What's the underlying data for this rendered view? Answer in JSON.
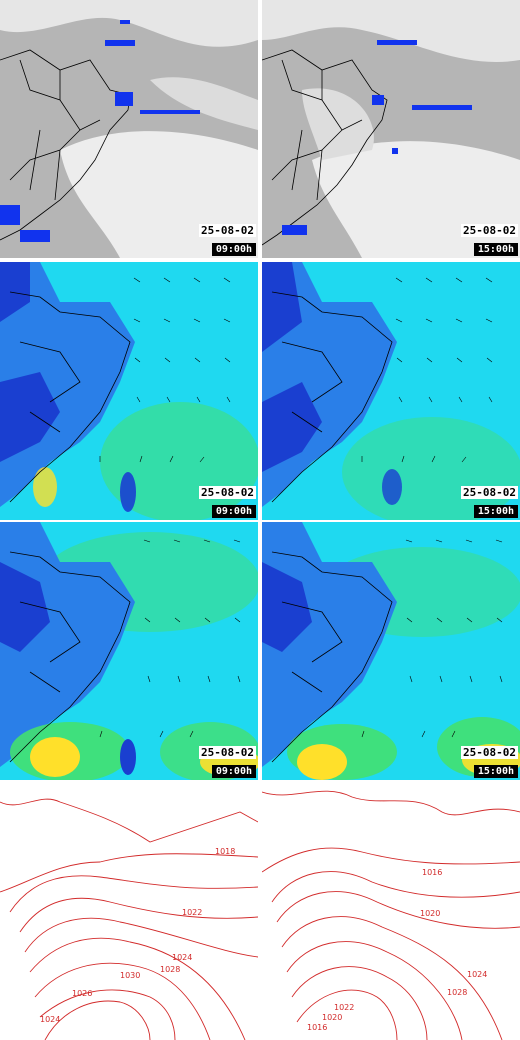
{
  "colors": {
    "satellite_bg": "#b9b9b9",
    "cloud": "#efefef",
    "cold_top": "#1133ee",
    "land_dark": "#1a3fd0",
    "ocean_cyan": "#1fd9f0",
    "mid_blue": "#2a7fe8",
    "green": "#43e070",
    "yellow": "#ffe02a",
    "isobar": "#d22a2a",
    "border": "#000000"
  },
  "panels": [
    {
      "row": "satellite",
      "col": "left",
      "date": "25-08-02",
      "time": "09:00h"
    },
    {
      "row": "satellite",
      "col": "right",
      "date": "25-08-02",
      "time": "15:00h"
    },
    {
      "row": "wind_low",
      "col": "left",
      "date": "25-08-02",
      "time": "09:00h"
    },
    {
      "row": "wind_low",
      "col": "right",
      "date": "25-08-02",
      "time": "15:00h"
    },
    {
      "row": "wind_high",
      "col": "left",
      "date": "25-08-02",
      "time": "09:00h"
    },
    {
      "row": "wind_high",
      "col": "right",
      "date": "25-08-02",
      "time": "15:00h"
    },
    {
      "row": "pressure",
      "col": "left"
    },
    {
      "row": "pressure",
      "col": "right"
    }
  ],
  "isobar_labels": {
    "left": [
      "1018",
      "1020",
      "1022",
      "1024",
      "1026",
      "1028",
      "1030",
      "1024",
      "1026"
    ],
    "right": [
      "1016",
      "1020",
      "1022",
      "1024",
      "1028",
      "1016",
      "1020",
      "1024",
      "1026"
    ]
  }
}
